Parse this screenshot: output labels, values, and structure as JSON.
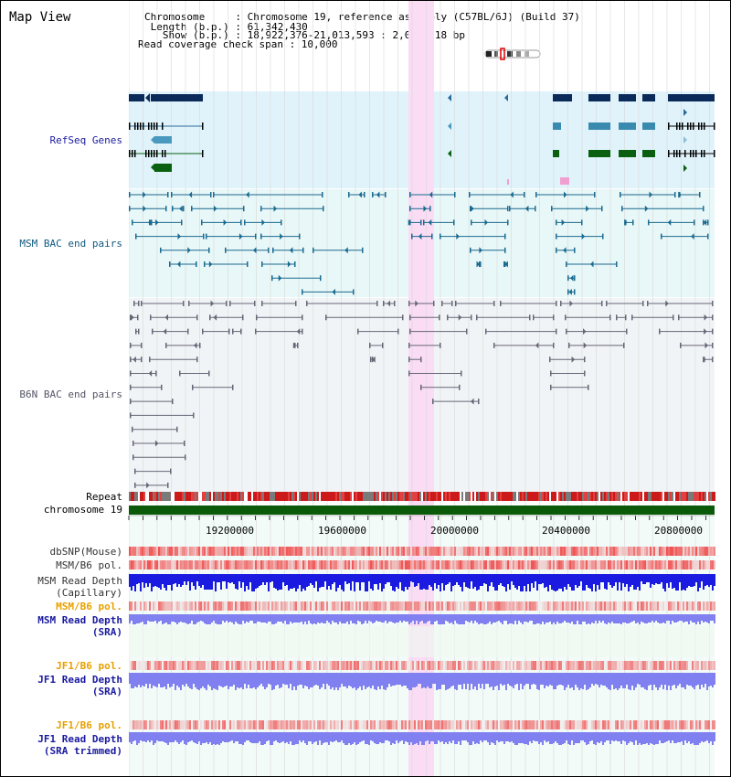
{
  "window": {
    "title": "Map View"
  },
  "header": {
    "chromosome_line": "Chromosome     : Chromosome 19, reference assembly (C57BL/6J) (Build 37)",
    "length_line": " Length (b.p.) : 61,342,430",
    "show_line": "   Show (b.p.) : 18,922,376-21,013,593 : 2,091,218 bp",
    "coverage_line": "Read coverage check span : 10,000"
  },
  "tracks": {
    "refseq": {
      "label": "RefSeq Genes",
      "color": "#1a1aa0"
    },
    "msm_bac": {
      "label": "MSM BAC end pairs",
      "color": "#105a80"
    },
    "b6n_bac": {
      "label": "B6N BAC end pairs",
      "color": "#555566"
    },
    "repeat": {
      "label": "Repeat"
    },
    "chromosome": {
      "label": "chromosome 19",
      "color": "#0a5a0a"
    },
    "dbsnp": {
      "label": "dbSNP(Mouse)"
    },
    "msm_b6_pol": {
      "label": "MSM/B6 pol."
    },
    "msm_read_depth_cap": {
      "label_line1": "MSM Read Depth",
      "label_line2": "(Capillary)"
    },
    "msm_b6_pol2": {
      "label": "MSM/B6 pol.",
      "color": "#e8a000"
    },
    "msm_read_depth_sra": {
      "label_line1": "MSM Read Depth",
      "label_line2": "(SRA)"
    },
    "jf1_b6_pol": {
      "label": "JF1/B6 pol.",
      "color": "#e8a000"
    },
    "jf1_read_depth_sra": {
      "label_line1": "JF1 Read Depth",
      "label_line2": "(SRA)"
    },
    "jf1_b6_pol2": {
      "label": "JF1/B6 pol.",
      "color": "#e8a000"
    },
    "jf1_read_depth_trim": {
      "label_line1": "JF1 Read Depth",
      "label_line2": "(SRA trimmed)"
    }
  },
  "axis": {
    "ticks": [
      "19200000",
      "19600000",
      "20000000",
      "20400000",
      "20800000"
    ]
  },
  "colors": {
    "refseq_bg": "#e0f3fb",
    "msm_bg": "#e8f7f7",
    "b6n_bg": "#f1f4f6",
    "highlight": "#fbdcf5",
    "gene_dark": "#0a2a5a",
    "gene_mid": "#3a8ab0",
    "gene_green": "#0a6010",
    "depth_blue": "#1a1ae0",
    "depth_light": "#8080f0"
  }
}
